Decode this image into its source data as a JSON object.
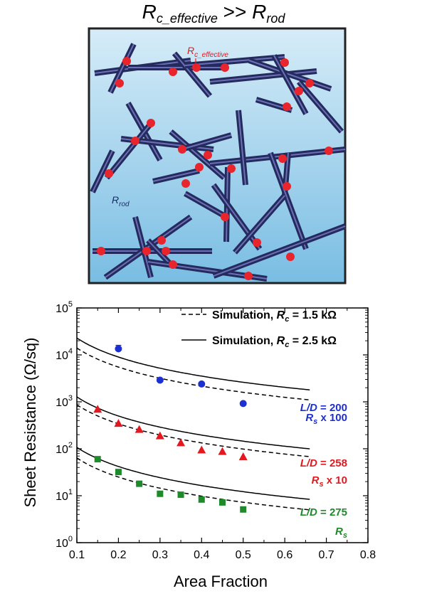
{
  "colors": {
    "rod": "#252a5c",
    "rod_highlight": "#6a70b8",
    "junction": "#e8252d",
    "panel_top": "#d6ecf8",
    "panel_bottom": "#79bde3",
    "blue": "#1c2fd1",
    "red": "#e3191f",
    "green": "#1f8a2a"
  },
  "schematic": {
    "title": {
      "r1": "R",
      "s1": "c_effective",
      "op": " >> ",
      "r2": "R",
      "s2": "rod"
    },
    "label_contact": {
      "r": "R",
      "s": "c_effective"
    },
    "label_rod": {
      "r": "R",
      "s": "rod"
    }
  },
  "chart_data": {
    "type": "scatter",
    "xlabel": "Area Fraction",
    "ylabel": "Sheet Resistance (Ω/sq)",
    "xlim": [
      0.1,
      0.8
    ],
    "ylim": [
      1,
      100000
    ],
    "yscale": "log",
    "xticks": [
      "0.1",
      "0.2",
      "0.3",
      "0.4",
      "0.5",
      "0.6",
      "0.7",
      "0.8"
    ],
    "yticks": [
      {
        "value": 1,
        "base": "10",
        "exp": "0"
      },
      {
        "value": 10,
        "base": "10",
        "exp": "1"
      },
      {
        "value": 100,
        "base": "10",
        "exp": "2"
      },
      {
        "value": 1000,
        "base": "10",
        "exp": "3"
      },
      {
        "value": 10000,
        "base": "10",
        "exp": "4"
      },
      {
        "value": 100000,
        "base": "10",
        "exp": "5"
      }
    ],
    "legend": [
      {
        "style": "dashed",
        "pre": "Simulation, ",
        "r": "R",
        "s": "c",
        "post": " = 1.5 kΩ"
      },
      {
        "style": "solid",
        "pre": "Simulation, ",
        "r": "R",
        "s": "c",
        "post": " = 2.5 kΩ"
      }
    ],
    "series": [
      {
        "color": "blue",
        "marker": "circle",
        "label1_pre": "L/D",
        "label1_post": " = 200",
        "label2_r": "R",
        "label2_s": "s",
        "label2_post": " x 100",
        "points": [
          {
            "x": 0.2,
            "y": 13500,
            "err": 2500
          },
          {
            "x": 0.3,
            "y": 2900
          },
          {
            "x": 0.4,
            "y": 2400
          },
          {
            "x": 0.5,
            "y": 920
          }
        ],
        "sim_solid_A": 9000,
        "sim_dashed_A": 5500
      },
      {
        "color": "red",
        "marker": "triangle",
        "label1_pre": "L/D",
        "label1_post": " = 258",
        "label2_r": "R",
        "label2_s": "s",
        "label2_post": " x 10",
        "points": [
          {
            "x": 0.15,
            "y": 700
          },
          {
            "x": 0.2,
            "y": 350
          },
          {
            "x": 0.25,
            "y": 260
          },
          {
            "x": 0.3,
            "y": 190
          },
          {
            "x": 0.35,
            "y": 135
          },
          {
            "x": 0.4,
            "y": 95
          },
          {
            "x": 0.45,
            "y": 88
          },
          {
            "x": 0.5,
            "y": 68
          }
        ],
        "sim_solid_A": 500,
        "sim_dashed_A": 340
      },
      {
        "color": "green",
        "marker": "square",
        "label1_pre": "L/D",
        "label1_post": " = 275",
        "label2_r": "R",
        "label2_s": "s",
        "label2_post": "",
        "points": [
          {
            "x": 0.15,
            "y": 60
          },
          {
            "x": 0.2,
            "y": 32
          },
          {
            "x": 0.25,
            "y": 18
          },
          {
            "x": 0.3,
            "y": 11
          },
          {
            "x": 0.35,
            "y": 10.5
          },
          {
            "x": 0.4,
            "y": 8.3
          },
          {
            "x": 0.45,
            "y": 7.2
          },
          {
            "x": 0.5,
            "y": 5.1
          }
        ],
        "sim_solid_A": 42,
        "sim_dashed_A": 25
      }
    ]
  }
}
